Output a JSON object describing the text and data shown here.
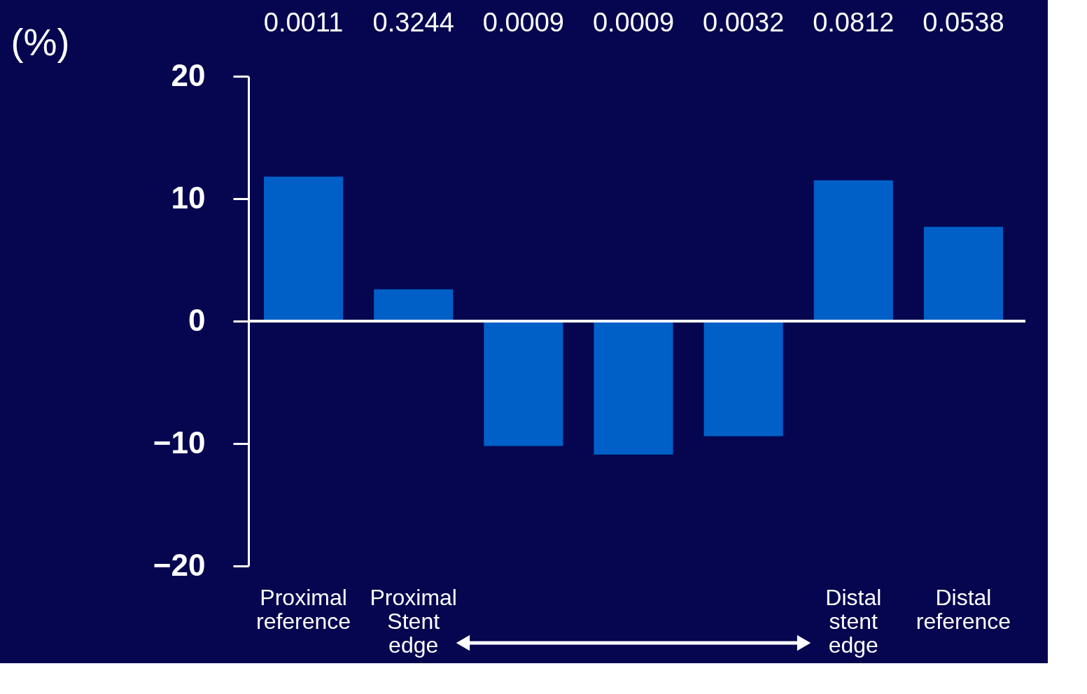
{
  "chart_data": {
    "type": "bar",
    "ylabel": "(%)",
    "categories": [
      "Proximal reference",
      "Proximal Stent edge",
      null,
      null,
      null,
      "Distal stent edge",
      "Distal reference"
    ],
    "values": [
      11.8,
      2.6,
      -10.2,
      -10.9,
      -9.4,
      11.5,
      7.7
    ],
    "color": "#0060c8",
    "ylim": [
      -20,
      20
    ],
    "yticks": [
      -20,
      -10,
      0,
      10,
      20
    ],
    "annotations": [
      "0.0011",
      "0.3244",
      "0.0009",
      "0.0009",
      "0.0032",
      "0.0812",
      "0.0538"
    ],
    "ref_lines": [
      {
        "axis": "y",
        "value": 0,
        "color": "#ffffff"
      }
    ],
    "grid": false
  }
}
